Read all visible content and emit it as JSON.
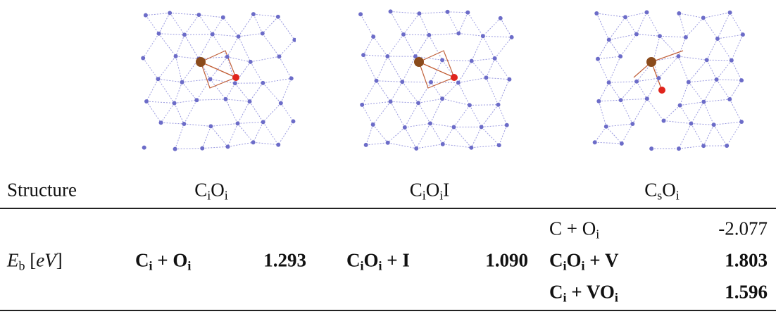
{
  "table": {
    "header": {
      "label": "Structure",
      "columns": [
        [
          "C",
          {
            "sub": "i"
          },
          "O",
          {
            "sub": "i"
          }
        ],
        [
          "C",
          {
            "sub": "i"
          },
          "O",
          {
            "sub": "i"
          },
          "I"
        ],
        [
          "C",
          {
            "sub": "s"
          },
          "O",
          {
            "sub": "i"
          }
        ]
      ]
    },
    "row_label": [
      {
        "it": "E"
      },
      {
        "sub": "b"
      },
      " [",
      {
        "it": "eV"
      },
      "]"
    ],
    "cells": [
      [
        {
          "reaction": [
            "C",
            {
              "sub": "i"
            },
            " + O",
            {
              "sub": "i"
            }
          ],
          "energy": "1.293",
          "bold": true
        }
      ],
      [
        {
          "reaction": [
            "C",
            {
              "sub": "i"
            },
            "O",
            {
              "sub": "i"
            },
            " + I"
          ],
          "energy": "1.090",
          "bold": true
        }
      ],
      [
        {
          "reaction": [
            "C + O",
            {
              "sub": "i"
            }
          ],
          "energy": "-2.077",
          "bold": false
        },
        {
          "reaction": [
            "C",
            {
              "sub": "i"
            },
            "O",
            {
              "sub": "i"
            },
            " + V"
          ],
          "energy": "1.803",
          "bold": true
        },
        {
          "reaction": [
            "C",
            {
              "sub": "i"
            },
            " + VO",
            {
              "sub": "i"
            }
          ],
          "energy": "1.596",
          "bold": true
        }
      ]
    ]
  }
}
